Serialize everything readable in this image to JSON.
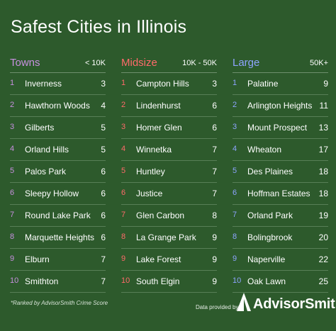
{
  "title": "Safest Cities in Illinois",
  "groups": [
    {
      "name": "Towns",
      "range": "< 10K",
      "color": "#c890e0",
      "rows": [
        {
          "rank": "1",
          "city": "Inverness",
          "score": "3"
        },
        {
          "rank": "2",
          "city": "Hawthorn Woods",
          "score": "4"
        },
        {
          "rank": "3",
          "city": "Gilberts",
          "score": "5"
        },
        {
          "rank": "4",
          "city": "Orland Hills",
          "score": "5"
        },
        {
          "rank": "5",
          "city": "Palos Park",
          "score": "6"
        },
        {
          "rank": "6",
          "city": "Sleepy Hollow",
          "score": "6"
        },
        {
          "rank": "7",
          "city": "Round Lake Park",
          "score": "6"
        },
        {
          "rank": "8",
          "city": "Marquette Heights",
          "score": "6"
        },
        {
          "rank": "9",
          "city": "Elburn",
          "score": "7"
        },
        {
          "rank": "10",
          "city": "Smithton",
          "score": "7"
        }
      ]
    },
    {
      "name": "Midsize",
      "range": "10K - 50K",
      "color": "#ff6a6a",
      "rows": [
        {
          "rank": "1",
          "city": "Campton Hills",
          "score": "3"
        },
        {
          "rank": "2",
          "city": "Lindenhurst",
          "score": "6"
        },
        {
          "rank": "3",
          "city": "Homer Glen",
          "score": "6"
        },
        {
          "rank": "4",
          "city": "Winnetka",
          "score": "7"
        },
        {
          "rank": "5",
          "city": "Huntley",
          "score": "7"
        },
        {
          "rank": "6",
          "city": "Justice",
          "score": "7"
        },
        {
          "rank": "7",
          "city": "Glen Carbon",
          "score": "8"
        },
        {
          "rank": "8",
          "city": "La Grange Park",
          "score": "9"
        },
        {
          "rank": "9",
          "city": "Lake Forest",
          "score": "9"
        },
        {
          "rank": "10",
          "city": "South Elgin",
          "score": "9"
        }
      ]
    },
    {
      "name": "Large",
      "range": "50K+",
      "color": "#8ea4ff",
      "rows": [
        {
          "rank": "1",
          "city": "Palatine",
          "score": "9"
        },
        {
          "rank": "2",
          "city": "Arlington Heights",
          "score": "11"
        },
        {
          "rank": "3",
          "city": "Mount Prospect",
          "score": "13"
        },
        {
          "rank": "4",
          "city": "Wheaton",
          "score": "17"
        },
        {
          "rank": "5",
          "city": "Des Plaines",
          "score": "18"
        },
        {
          "rank": "6",
          "city": "Hoffman Estates",
          "score": "18"
        },
        {
          "rank": "7",
          "city": "Orland Park",
          "score": "19"
        },
        {
          "rank": "8",
          "city": "Bolingbrook",
          "score": "20"
        },
        {
          "rank": "9",
          "city": "Naperville",
          "score": "22"
        },
        {
          "rank": "10",
          "city": "Oak Lawn",
          "score": "25"
        }
      ]
    }
  ],
  "footnote": "*Ranked by AdvisorSmith Crime Score",
  "provided_by": "Data provided by",
  "brand": "AdvisorSmith",
  "logo_icon": "mountain-peak-icon"
}
